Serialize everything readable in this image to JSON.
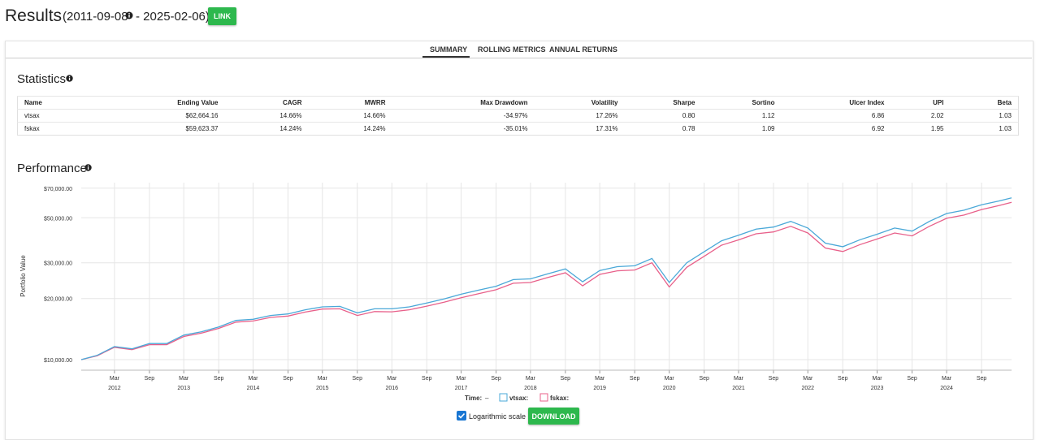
{
  "header": {
    "title": "Results",
    "date_start": "(2011-09-08",
    "date_end": "- 2025-02-06)",
    "link_button": "LINK"
  },
  "tabs": [
    "SUMMARY",
    "ROLLING METRICS",
    "ANNUAL RETURNS"
  ],
  "statistics": {
    "title": "Statistics",
    "columns": [
      "Name",
      "Ending Value",
      "CAGR",
      "MWRR",
      "Max Drawdown",
      "Volatility",
      "Sharpe",
      "Sortino",
      "Ulcer Index",
      "UPI",
      "Beta"
    ],
    "rows": [
      [
        "vtsax",
        "$62,664.16",
        "14.66%",
        "14.66%",
        "-34.97%",
        "17.26%",
        "0.80",
        "1.12",
        "6.86",
        "2.02",
        "1.03"
      ],
      [
        "fskax",
        "$59,623.37",
        "14.24%",
        "14.24%",
        "-35.01%",
        "17.31%",
        "0.78",
        "1.09",
        "6.92",
        "1.95",
        "1.03"
      ]
    ]
  },
  "chart_data": {
    "type": "line",
    "title": "Performance",
    "y_label": "Portfolio Value",
    "log_y": true,
    "grid": true,
    "legend_time_label": "Time:",
    "legend_time_value": "–",
    "x": [
      "2011-09-08",
      "2011-12",
      "2012-03",
      "2012-06",
      "2012-09",
      "2012-12",
      "2013-03",
      "2013-06",
      "2013-09",
      "2013-12",
      "2014-03",
      "2014-06",
      "2014-09",
      "2014-12",
      "2015-03",
      "2015-06",
      "2015-09",
      "2015-12",
      "2016-03",
      "2016-06",
      "2016-09",
      "2016-12",
      "2017-03",
      "2017-06",
      "2017-09",
      "2017-12",
      "2018-03",
      "2018-06",
      "2018-09",
      "2018-12",
      "2019-03",
      "2019-06",
      "2019-09",
      "2019-12",
      "2020-03",
      "2020-06",
      "2020-09",
      "2020-12",
      "2021-03",
      "2021-06",
      "2021-09",
      "2021-12",
      "2022-03",
      "2022-06",
      "2022-09",
      "2022-12",
      "2023-03",
      "2023-06",
      "2023-09",
      "2023-12",
      "2024-03",
      "2024-06",
      "2024-09",
      "2024-12",
      "2025-02-06"
    ],
    "series": [
      {
        "name": "vtsax:",
        "color": "#4aa8d8",
        "values": [
          10000,
          10500,
          11600,
          11300,
          12000,
          12000,
          13200,
          13700,
          14500,
          15600,
          15800,
          16500,
          16800,
          17600,
          18200,
          18300,
          17000,
          17800,
          17800,
          18200,
          19000,
          19900,
          21000,
          22000,
          23000,
          24800,
          25000,
          26500,
          28000,
          24200,
          27500,
          28700,
          29000,
          31500,
          24000,
          30000,
          34000,
          38500,
          41000,
          44000,
          45000,
          48000,
          44500,
          37500,
          36000,
          39000,
          41500,
          44500,
          43000,
          48000,
          52500,
          54500,
          58000,
          60500,
          62664.16
        ]
      },
      {
        "name": "fskax:",
        "color": "#e8608a",
        "values": [
          10000,
          10450,
          11500,
          11200,
          11850,
          11850,
          13000,
          13500,
          14250,
          15300,
          15500,
          16150,
          16400,
          17150,
          17750,
          17800,
          16500,
          17250,
          17200,
          17600,
          18350,
          19200,
          20200,
          21150,
          22100,
          23800,
          24000,
          25400,
          26800,
          23100,
          26300,
          27400,
          27650,
          30000,
          22800,
          28500,
          32300,
          36600,
          38900,
          41700,
          42600,
          45400,
          42100,
          35500,
          34100,
          36900,
          39300,
          42100,
          40700,
          45400,
          49700,
          51600,
          54900,
          57400,
          59623.37
        ]
      }
    ],
    "xlim": [
      "2011-09-08",
      "2025-02-06"
    ],
    "ylim": [
      8870,
      74500
    ],
    "yticks": [
      {
        "value": 10000,
        "label": "$10,000.00"
      },
      {
        "value": 20000,
        "label": "$20,000.00"
      },
      {
        "value": 30000,
        "label": "$30,000.00"
      },
      {
        "value": 50000,
        "label": "$50,000.00"
      },
      {
        "value": 70000,
        "label": "$70,000.00"
      }
    ],
    "xticks": [
      {
        "value": "2012-03",
        "label": "Mar"
      },
      {
        "value": "2012-09",
        "label": "Sep"
      },
      {
        "value": "2013-03",
        "label": "Mar"
      },
      {
        "value": "2013-09",
        "label": "Sep"
      },
      {
        "value": "2014-03",
        "label": "Mar"
      },
      {
        "value": "2014-09",
        "label": "Sep"
      },
      {
        "value": "2015-03",
        "label": "Mar"
      },
      {
        "value": "2015-09",
        "label": "Sep"
      },
      {
        "value": "2016-03",
        "label": "Mar"
      },
      {
        "value": "2016-09",
        "label": "Sep"
      },
      {
        "value": "2017-03",
        "label": "Mar"
      },
      {
        "value": "2017-09",
        "label": "Sep"
      },
      {
        "value": "2018-03",
        "label": "Mar"
      },
      {
        "value": "2018-09",
        "label": "Sep"
      },
      {
        "value": "2019-03",
        "label": "Mar"
      },
      {
        "value": "2019-09",
        "label": "Sep"
      },
      {
        "value": "2020-03",
        "label": "Mar"
      },
      {
        "value": "2020-09",
        "label": "Sep"
      },
      {
        "value": "2021-03",
        "label": "Mar"
      },
      {
        "value": "2021-09",
        "label": "Sep"
      },
      {
        "value": "2022-03",
        "label": "Mar"
      },
      {
        "value": "2022-09",
        "label": "Sep"
      },
      {
        "value": "2023-03",
        "label": "Mar"
      },
      {
        "value": "2023-09",
        "label": "Sep"
      },
      {
        "value": "2024-03",
        "label": "Mar"
      },
      {
        "value": "2024-09",
        "label": "Sep"
      }
    ],
    "xtick_years": [
      {
        "value": "2012-03",
        "label": "2012"
      },
      {
        "value": "2013-03",
        "label": "2013"
      },
      {
        "value": "2014-03",
        "label": "2014"
      },
      {
        "value": "2015-03",
        "label": "2015"
      },
      {
        "value": "2016-03",
        "label": "2016"
      },
      {
        "value": "2017-03",
        "label": "2017"
      },
      {
        "value": "2018-03",
        "label": "2018"
      },
      {
        "value": "2019-03",
        "label": "2019"
      },
      {
        "value": "2020-03",
        "label": "2020"
      },
      {
        "value": "2021-03",
        "label": "2021"
      },
      {
        "value": "2022-03",
        "label": "2022"
      },
      {
        "value": "2023-03",
        "label": "2023"
      },
      {
        "value": "2024-03",
        "label": "2024"
      }
    ]
  },
  "controls": {
    "log_label": "Logarithmic scale",
    "log_checked": true,
    "download": "DOWNLOAD"
  }
}
